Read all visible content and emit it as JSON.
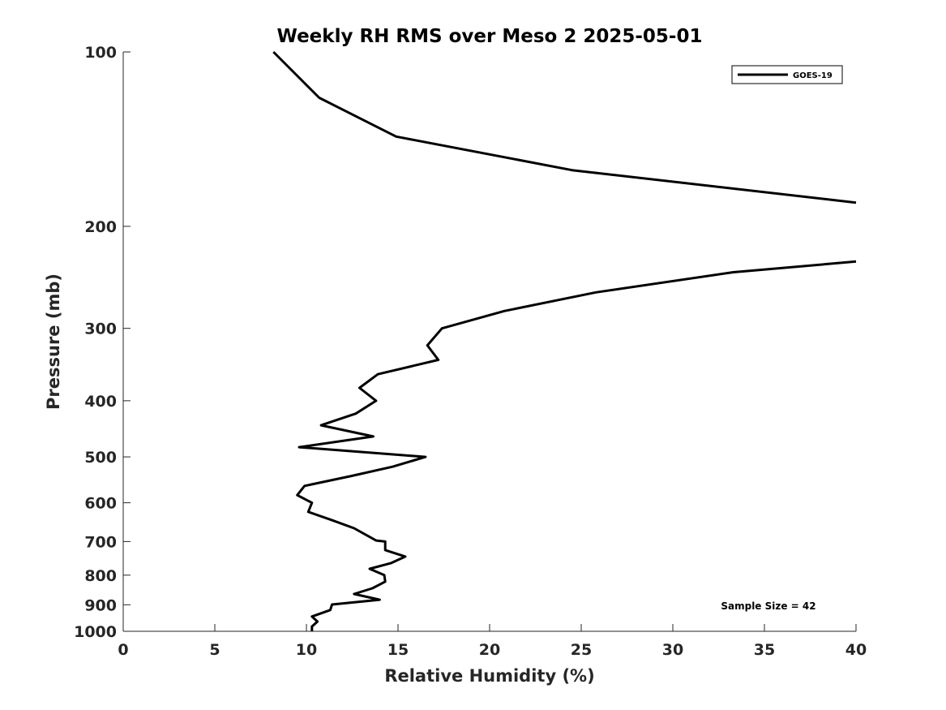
{
  "chart_data": {
    "type": "line",
    "title": "Weekly RH RMS over Meso 2 2025-05-01",
    "xlabel": "Relative Humidity (%)",
    "ylabel": "Pressure (mb)",
    "xlim": [
      0,
      40
    ],
    "ylim": [
      1000,
      100
    ],
    "yscale": "log",
    "xticks": [
      "0",
      "5",
      "10",
      "15",
      "20",
      "25",
      "30",
      "35",
      "40"
    ],
    "yticks": [
      "100",
      "200",
      "300",
      "400",
      "500",
      "600",
      "700",
      "800",
      "900",
      "1000"
    ],
    "grid": false,
    "legend": {
      "position": "top-right",
      "entries": [
        "GOES-19"
      ]
    },
    "annotation": "Sample Size = 42",
    "series": [
      {
        "name": "GOES-19",
        "color": "#000000",
        "points": [
          [
            8.2,
            100
          ],
          [
            10.7,
            120
          ],
          [
            14.9,
            140
          ],
          [
            24.5,
            160
          ],
          [
            40,
            182
          ],
          null,
          [
            40,
            230
          ],
          [
            33.3,
            240
          ],
          [
            25.8,
            260
          ],
          [
            20.8,
            280
          ],
          [
            17.4,
            300
          ],
          [
            16.6,
            321
          ],
          [
            17.2,
            340
          ],
          [
            13.9,
            360
          ],
          [
            12.9,
            380
          ],
          [
            13.8,
            400
          ],
          [
            12.7,
            421
          ],
          [
            10.8,
            441
          ],
          [
            13.65,
            461
          ],
          [
            9.6,
            481
          ],
          [
            16.5,
            500
          ],
          [
            14.7,
            520
          ],
          [
            12.4,
            540
          ],
          [
            9.9,
            561
          ],
          [
            9.5,
            582
          ],
          [
            10.3,
            600
          ],
          [
            10.1,
            622
          ],
          [
            11.4,
            643
          ],
          [
            12.6,
            664
          ],
          [
            13.8,
            697
          ],
          [
            14.3,
            700
          ],
          [
            14.3,
            724
          ],
          [
            15.4,
            743
          ],
          [
            14.6,
            763
          ],
          [
            13.45,
            780
          ],
          [
            14.25,
            800
          ],
          [
            14.3,
            821
          ],
          [
            13.6,
            843
          ],
          [
            12.6,
            862
          ],
          [
            14.0,
            882
          ],
          [
            11.4,
            899
          ],
          [
            11.3,
            919
          ],
          [
            10.3,
            943
          ],
          [
            10.6,
            962
          ],
          [
            10.3,
            981
          ],
          [
            10.3,
            1000
          ]
        ]
      }
    ]
  }
}
